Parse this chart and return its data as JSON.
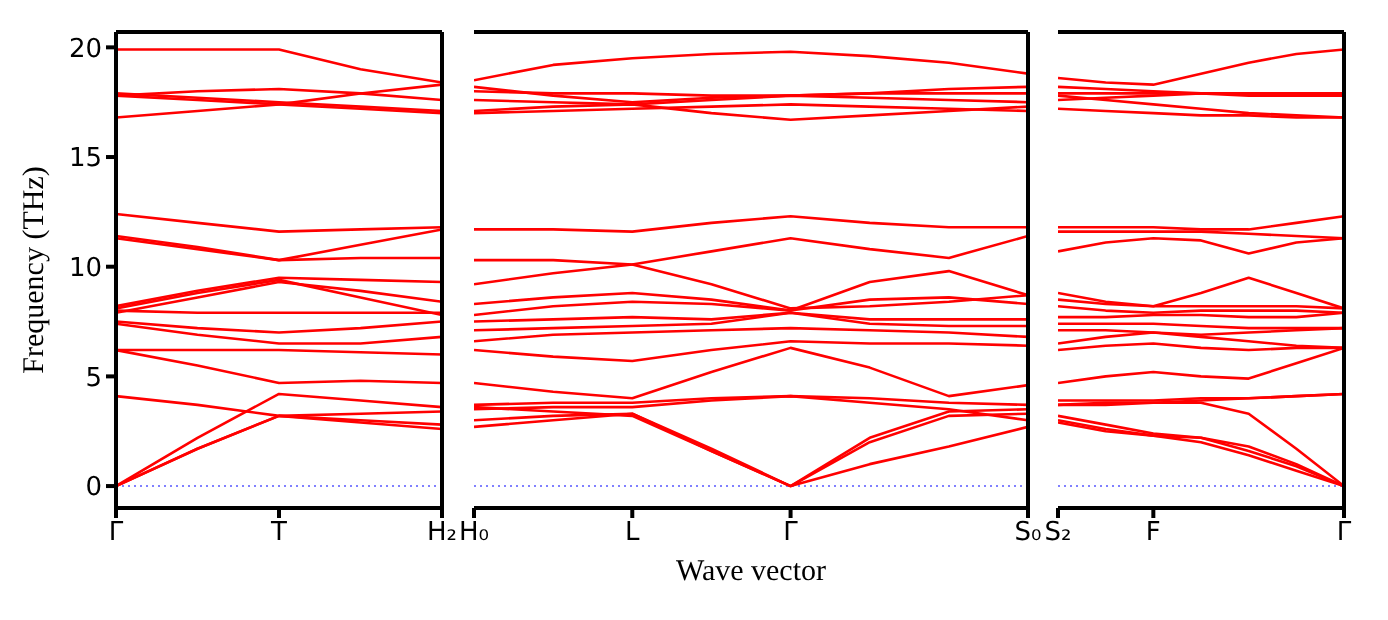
{
  "chart_data": [
    {
      "type": "line",
      "ylabel": "Frequency (THz)",
      "categories": [
        "Γ",
        null,
        "T",
        null,
        "H₂"
      ],
      "ylim": [
        -1,
        20.7
      ],
      "yticks": [
        0,
        5,
        10,
        15,
        20
      ],
      "ref_lines": [
        {
          "axis": "y",
          "value": 0,
          "color": "#8080ff",
          "line_style": "dotted"
        }
      ],
      "series": [
        {
          "color": "#ff0000",
          "values": [
            0,
            1.7,
            3.2,
            3.0,
            2.8
          ]
        },
        {
          "color": "#ff0000",
          "values": [
            0,
            1.7,
            3.2,
            2.9,
            2.6
          ]
        },
        {
          "color": "#ff0000",
          "values": [
            0,
            2.2,
            4.2,
            3.9,
            3.6
          ]
        },
        {
          "color": "#ff0000",
          "values": [
            4.1,
            3.7,
            3.2,
            3.3,
            3.4
          ]
        },
        {
          "color": "#ff0000",
          "values": [
            6.2,
            5.5,
            4.7,
            4.8,
            4.7
          ]
        },
        {
          "color": "#ff0000",
          "values": [
            6.2,
            6.2,
            6.2,
            6.1,
            6.0
          ]
        },
        {
          "color": "#ff0000",
          "values": [
            7.4,
            6.9,
            6.5,
            6.5,
            6.8
          ]
        },
        {
          "color": "#ff0000",
          "values": [
            7.5,
            7.2,
            7.0,
            7.2,
            7.5
          ]
        },
        {
          "color": "#ff0000",
          "values": [
            8.0,
            7.9,
            7.9,
            7.9,
            7.9
          ]
        },
        {
          "color": "#ff0000",
          "values": [
            7.9,
            8.6,
            9.3,
            8.9,
            8.4
          ]
        },
        {
          "color": "#ff0000",
          "values": [
            8.2,
            8.9,
            9.5,
            9.4,
            9.3
          ]
        },
        {
          "color": "#ff0000",
          "values": [
            8.1,
            8.8,
            9.4,
            8.6,
            7.8
          ]
        },
        {
          "color": "#ff0000",
          "values": [
            11.4,
            10.9,
            10.3,
            11.0,
            11.7
          ]
        },
        {
          "color": "#ff0000",
          "values": [
            11.3,
            10.8,
            10.3,
            10.4,
            10.4
          ]
        },
        {
          "color": "#ff0000",
          "values": [
            12.4,
            12.0,
            11.6,
            11.7,
            11.8
          ]
        },
        {
          "color": "#ff0000",
          "values": [
            16.8,
            17.1,
            17.4,
            17.9,
            18.3
          ]
        },
        {
          "color": "#ff0000",
          "values": [
            17.8,
            17.6,
            17.4,
            17.2,
            17.0
          ]
        },
        {
          "color": "#ff0000",
          "values": [
            17.8,
            18.0,
            18.1,
            17.9,
            17.6
          ]
        },
        {
          "color": "#ff0000",
          "values": [
            17.9,
            17.7,
            17.5,
            17.3,
            17.1
          ]
        },
        {
          "color": "#ff0000",
          "values": [
            19.9,
            19.9,
            19.9,
            19.0,
            18.4
          ]
        }
      ]
    },
    {
      "type": "line",
      "xlabel": "Wave vector",
      "tick_labels": "x",
      "categories": [
        "H₀",
        null,
        "L",
        null,
        "Γ",
        null,
        null,
        "S₀"
      ],
      "ylim": [
        -1,
        20.7
      ],
      "ref_lines": [
        {
          "axis": "y",
          "value": 0,
          "color": "#8080ff",
          "line_style": "dotted"
        }
      ],
      "series": [
        {
          "color": "#ff0000",
          "values": [
            18.5,
            19.2,
            19.5,
            19.7,
            19.8,
            19.6,
            19.3,
            18.8
          ]
        },
        {
          "color": "#ff0000",
          "values": [
            18.2,
            17.8,
            17.5,
            17.7,
            17.8,
            17.9,
            18.1,
            18.2
          ]
        },
        {
          "color": "#ff0000",
          "values": [
            18.0,
            17.9,
            17.9,
            17.8,
            17.8,
            17.9,
            17.9,
            17.9
          ]
        },
        {
          "color": "#ff0000",
          "values": [
            17.6,
            17.5,
            17.4,
            17.6,
            17.8,
            17.7,
            17.6,
            17.5
          ]
        },
        {
          "color": "#ff0000",
          "values": [
            17.1,
            17.3,
            17.4,
            17.0,
            16.7,
            16.9,
            17.1,
            17.3
          ]
        },
        {
          "color": "#ff0000",
          "values": [
            17.0,
            17.1,
            17.2,
            17.3,
            17.4,
            17.3,
            17.2,
            17.1
          ]
        },
        {
          "color": "#ff0000",
          "values": [
            11.7,
            11.7,
            11.6,
            12.0,
            12.3,
            12.0,
            11.8,
            11.8
          ]
        },
        {
          "color": "#ff0000",
          "values": [
            9.2,
            9.7,
            10.1,
            10.7,
            11.3,
            10.8,
            10.4,
            11.4
          ]
        },
        {
          "color": "#ff0000",
          "values": [
            10.3,
            10.3,
            10.1,
            9.2,
            8.1,
            8.2,
            8.4,
            8.7
          ]
        },
        {
          "color": "#ff0000",
          "values": [
            8.3,
            8.6,
            8.8,
            8.5,
            8.0,
            9.3,
            9.8,
            8.7
          ]
        },
        {
          "color": "#ff0000",
          "values": [
            7.8,
            8.2,
            8.4,
            8.3,
            8.0,
            8.5,
            8.6,
            8.3
          ]
        },
        {
          "color": "#ff0000",
          "values": [
            7.5,
            7.6,
            7.7,
            7.6,
            7.9,
            7.6,
            7.6,
            7.6
          ]
        },
        {
          "color": "#ff0000",
          "values": [
            7.1,
            7.2,
            7.3,
            7.4,
            7.9,
            7.4,
            7.3,
            7.3
          ]
        },
        {
          "color": "#ff0000",
          "values": [
            6.6,
            6.9,
            7.0,
            7.1,
            7.2,
            7.1,
            7.0,
            6.8
          ]
        },
        {
          "color": "#ff0000",
          "values": [
            6.2,
            5.9,
            5.7,
            6.2,
            6.6,
            6.5,
            6.5,
            6.4
          ]
        },
        {
          "color": "#ff0000",
          "values": [
            4.7,
            4.3,
            4.0,
            5.2,
            6.3,
            5.4,
            4.1,
            4.6
          ]
        },
        {
          "color": "#ff0000",
          "values": [
            3.7,
            3.8,
            3.8,
            4.0,
            4.1,
            4.0,
            3.8,
            3.7
          ]
        },
        {
          "color": "#ff0000",
          "values": [
            3.5,
            3.6,
            3.6,
            3.9,
            4.1,
            3.8,
            3.5,
            3.0
          ]
        },
        {
          "color": "#ff0000",
          "values": [
            2.7,
            3.0,
            3.3,
            1.7,
            0,
            1.0,
            1.8,
            2.7
          ]
        },
        {
          "color": "#ff0000",
          "values": [
            3.0,
            3.2,
            3.3,
            1.6,
            0,
            2.0,
            3.2,
            3.3
          ]
        },
        {
          "color": "#ff0000",
          "values": [
            3.6,
            3.4,
            3.2,
            1.6,
            0,
            2.2,
            3.4,
            3.5
          ]
        }
      ]
    },
    {
      "type": "line",
      "tick_labels": "x",
      "categories": [
        "S₂",
        null,
        "F",
        null,
        null,
        null,
        "Γ"
      ],
      "ylim": [
        -1,
        20.7
      ],
      "ref_lines": [
        {
          "axis": "y",
          "value": 0,
          "color": "#8080ff",
          "line_style": "dotted"
        }
      ],
      "series": [
        {
          "color": "#ff0000",
          "values": [
            18.6,
            18.4,
            18.3,
            18.8,
            19.3,
            19.7,
            19.9
          ]
        },
        {
          "color": "#ff0000",
          "values": [
            18.2,
            18.1,
            18.0,
            17.9,
            17.8,
            17.8,
            17.8
          ]
        },
        {
          "color": "#ff0000",
          "values": [
            17.9,
            17.9,
            17.9,
            17.9,
            17.9,
            17.9,
            17.9
          ]
        },
        {
          "color": "#ff0000",
          "values": [
            17.6,
            17.7,
            17.8,
            17.9,
            17.9,
            17.9,
            17.8
          ]
        },
        {
          "color": "#ff0000",
          "values": [
            17.8,
            17.6,
            17.4,
            17.2,
            17.0,
            16.9,
            16.8
          ]
        },
        {
          "color": "#ff0000",
          "values": [
            17.2,
            17.1,
            17.0,
            16.9,
            16.9,
            16.8,
            16.8
          ]
        },
        {
          "color": "#ff0000",
          "values": [
            11.8,
            11.8,
            11.8,
            11.7,
            11.7,
            12.0,
            12.3
          ]
        },
        {
          "color": "#ff0000",
          "values": [
            11.6,
            11.6,
            11.6,
            11.6,
            11.5,
            11.4,
            11.3
          ]
        },
        {
          "color": "#ff0000",
          "values": [
            10.7,
            11.1,
            11.3,
            11.2,
            10.6,
            11.1,
            11.3
          ]
        },
        {
          "color": "#ff0000",
          "values": [
            8.8,
            8.4,
            8.2,
            8.8,
            9.5,
            8.8,
            8.1
          ]
        },
        {
          "color": "#ff0000",
          "values": [
            8.5,
            8.3,
            8.2,
            8.2,
            8.2,
            8.2,
            8.1
          ]
        },
        {
          "color": "#ff0000",
          "values": [
            8.2,
            8.0,
            7.9,
            8.0,
            8.0,
            8.0,
            7.9
          ]
        },
        {
          "color": "#ff0000",
          "values": [
            7.7,
            7.7,
            7.8,
            7.8,
            7.7,
            7.7,
            7.9
          ]
        },
        {
          "color": "#ff0000",
          "values": [
            7.4,
            7.4,
            7.4,
            7.3,
            7.2,
            7.2,
            7.2
          ]
        },
        {
          "color": "#ff0000",
          "values": [
            7.1,
            7.1,
            7.0,
            6.9,
            7.0,
            7.1,
            7.2
          ]
        },
        {
          "color": "#ff0000",
          "values": [
            6.5,
            6.8,
            7.0,
            6.8,
            6.6,
            6.4,
            6.3
          ]
        },
        {
          "color": "#ff0000",
          "values": [
            6.2,
            6.4,
            6.5,
            6.3,
            6.2,
            6.3,
            6.3
          ]
        },
        {
          "color": "#ff0000",
          "values": [
            4.7,
            5.0,
            5.2,
            5.0,
            4.9,
            5.6,
            6.3
          ]
        },
        {
          "color": "#ff0000",
          "values": [
            3.9,
            3.9,
            3.9,
            4.0,
            4.0,
            4.1,
            4.2
          ]
        },
        {
          "color": "#ff0000",
          "values": [
            3.7,
            3.7,
            3.8,
            3.9,
            4.0,
            4.1,
            4.2
          ]
        },
        {
          "color": "#ff0000",
          "values": [
            3.7,
            3.8,
            3.8,
            3.8,
            3.3,
            1.7,
            0
          ]
        },
        {
          "color": "#ff0000",
          "values": [
            3.0,
            2.6,
            2.3,
            2.2,
            1.6,
            0.9,
            0
          ]
        },
        {
          "color": "#ff0000",
          "values": [
            2.9,
            2.5,
            2.3,
            2.0,
            1.4,
            0.7,
            0
          ]
        },
        {
          "color": "#ff0000",
          "values": [
            3.2,
            2.8,
            2.4,
            2.2,
            1.8,
            1.0,
            0
          ]
        }
      ]
    }
  ]
}
